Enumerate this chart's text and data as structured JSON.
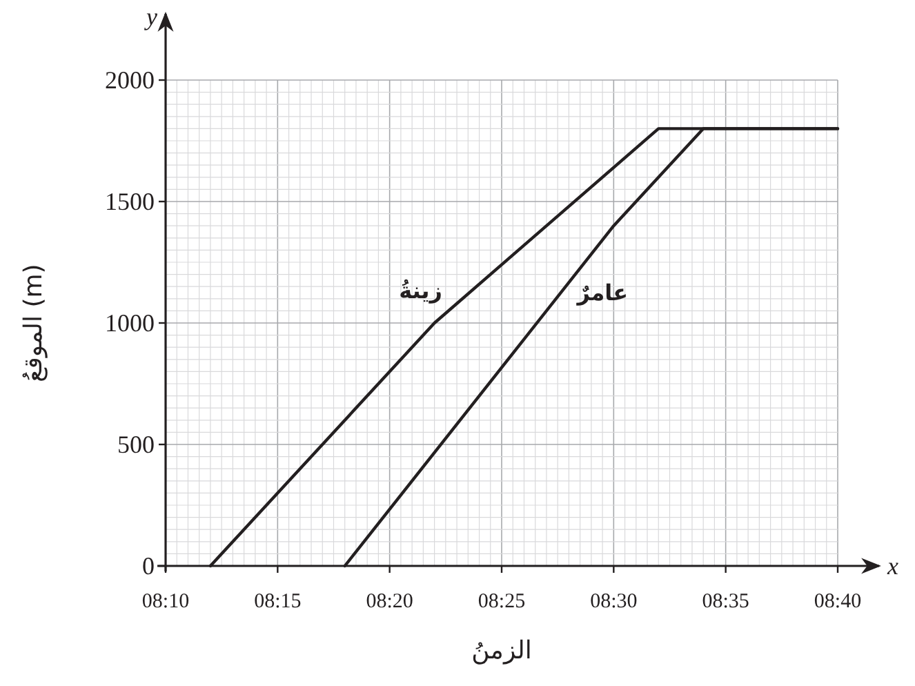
{
  "chart_data": {
    "type": "line",
    "xlabel": "الزمنُ",
    "ylabel": "الموقعُ (m)",
    "annotations": [
      "x",
      "y"
    ],
    "xlim": [
      8.16667,
      8.66667
    ],
    "xticks": [
      {
        "value": 8.16667,
        "label": "08:10"
      },
      {
        "value": 8.25,
        "label": "08:15"
      },
      {
        "value": 8.33333,
        "label": "08:20"
      },
      {
        "value": 8.41667,
        "label": "08:25"
      },
      {
        "value": 8.5,
        "label": "08:30"
      },
      {
        "value": 8.58333,
        "label": "08:35"
      },
      {
        "value": 8.66667,
        "label": "08:40"
      }
    ],
    "ylim": [
      0,
      2000
    ],
    "yticks": [
      0,
      500,
      1000,
      1500,
      2000
    ],
    "grid": true,
    "marker": "none",
    "line_style": "solid",
    "series": [
      {
        "name": "زينةُ",
        "color": "#231f20",
        "x": [
          8.2,
          8.36667,
          8.53333,
          8.66667
        ],
        "values": [
          0,
          1000,
          1800,
          1800
        ]
      },
      {
        "name": "عامرٌ",
        "color": "#231f20",
        "x": [
          8.3,
          8.5,
          8.56667,
          8.66667
        ],
        "values": [
          0,
          1400,
          1800,
          1800
        ]
      }
    ]
  }
}
